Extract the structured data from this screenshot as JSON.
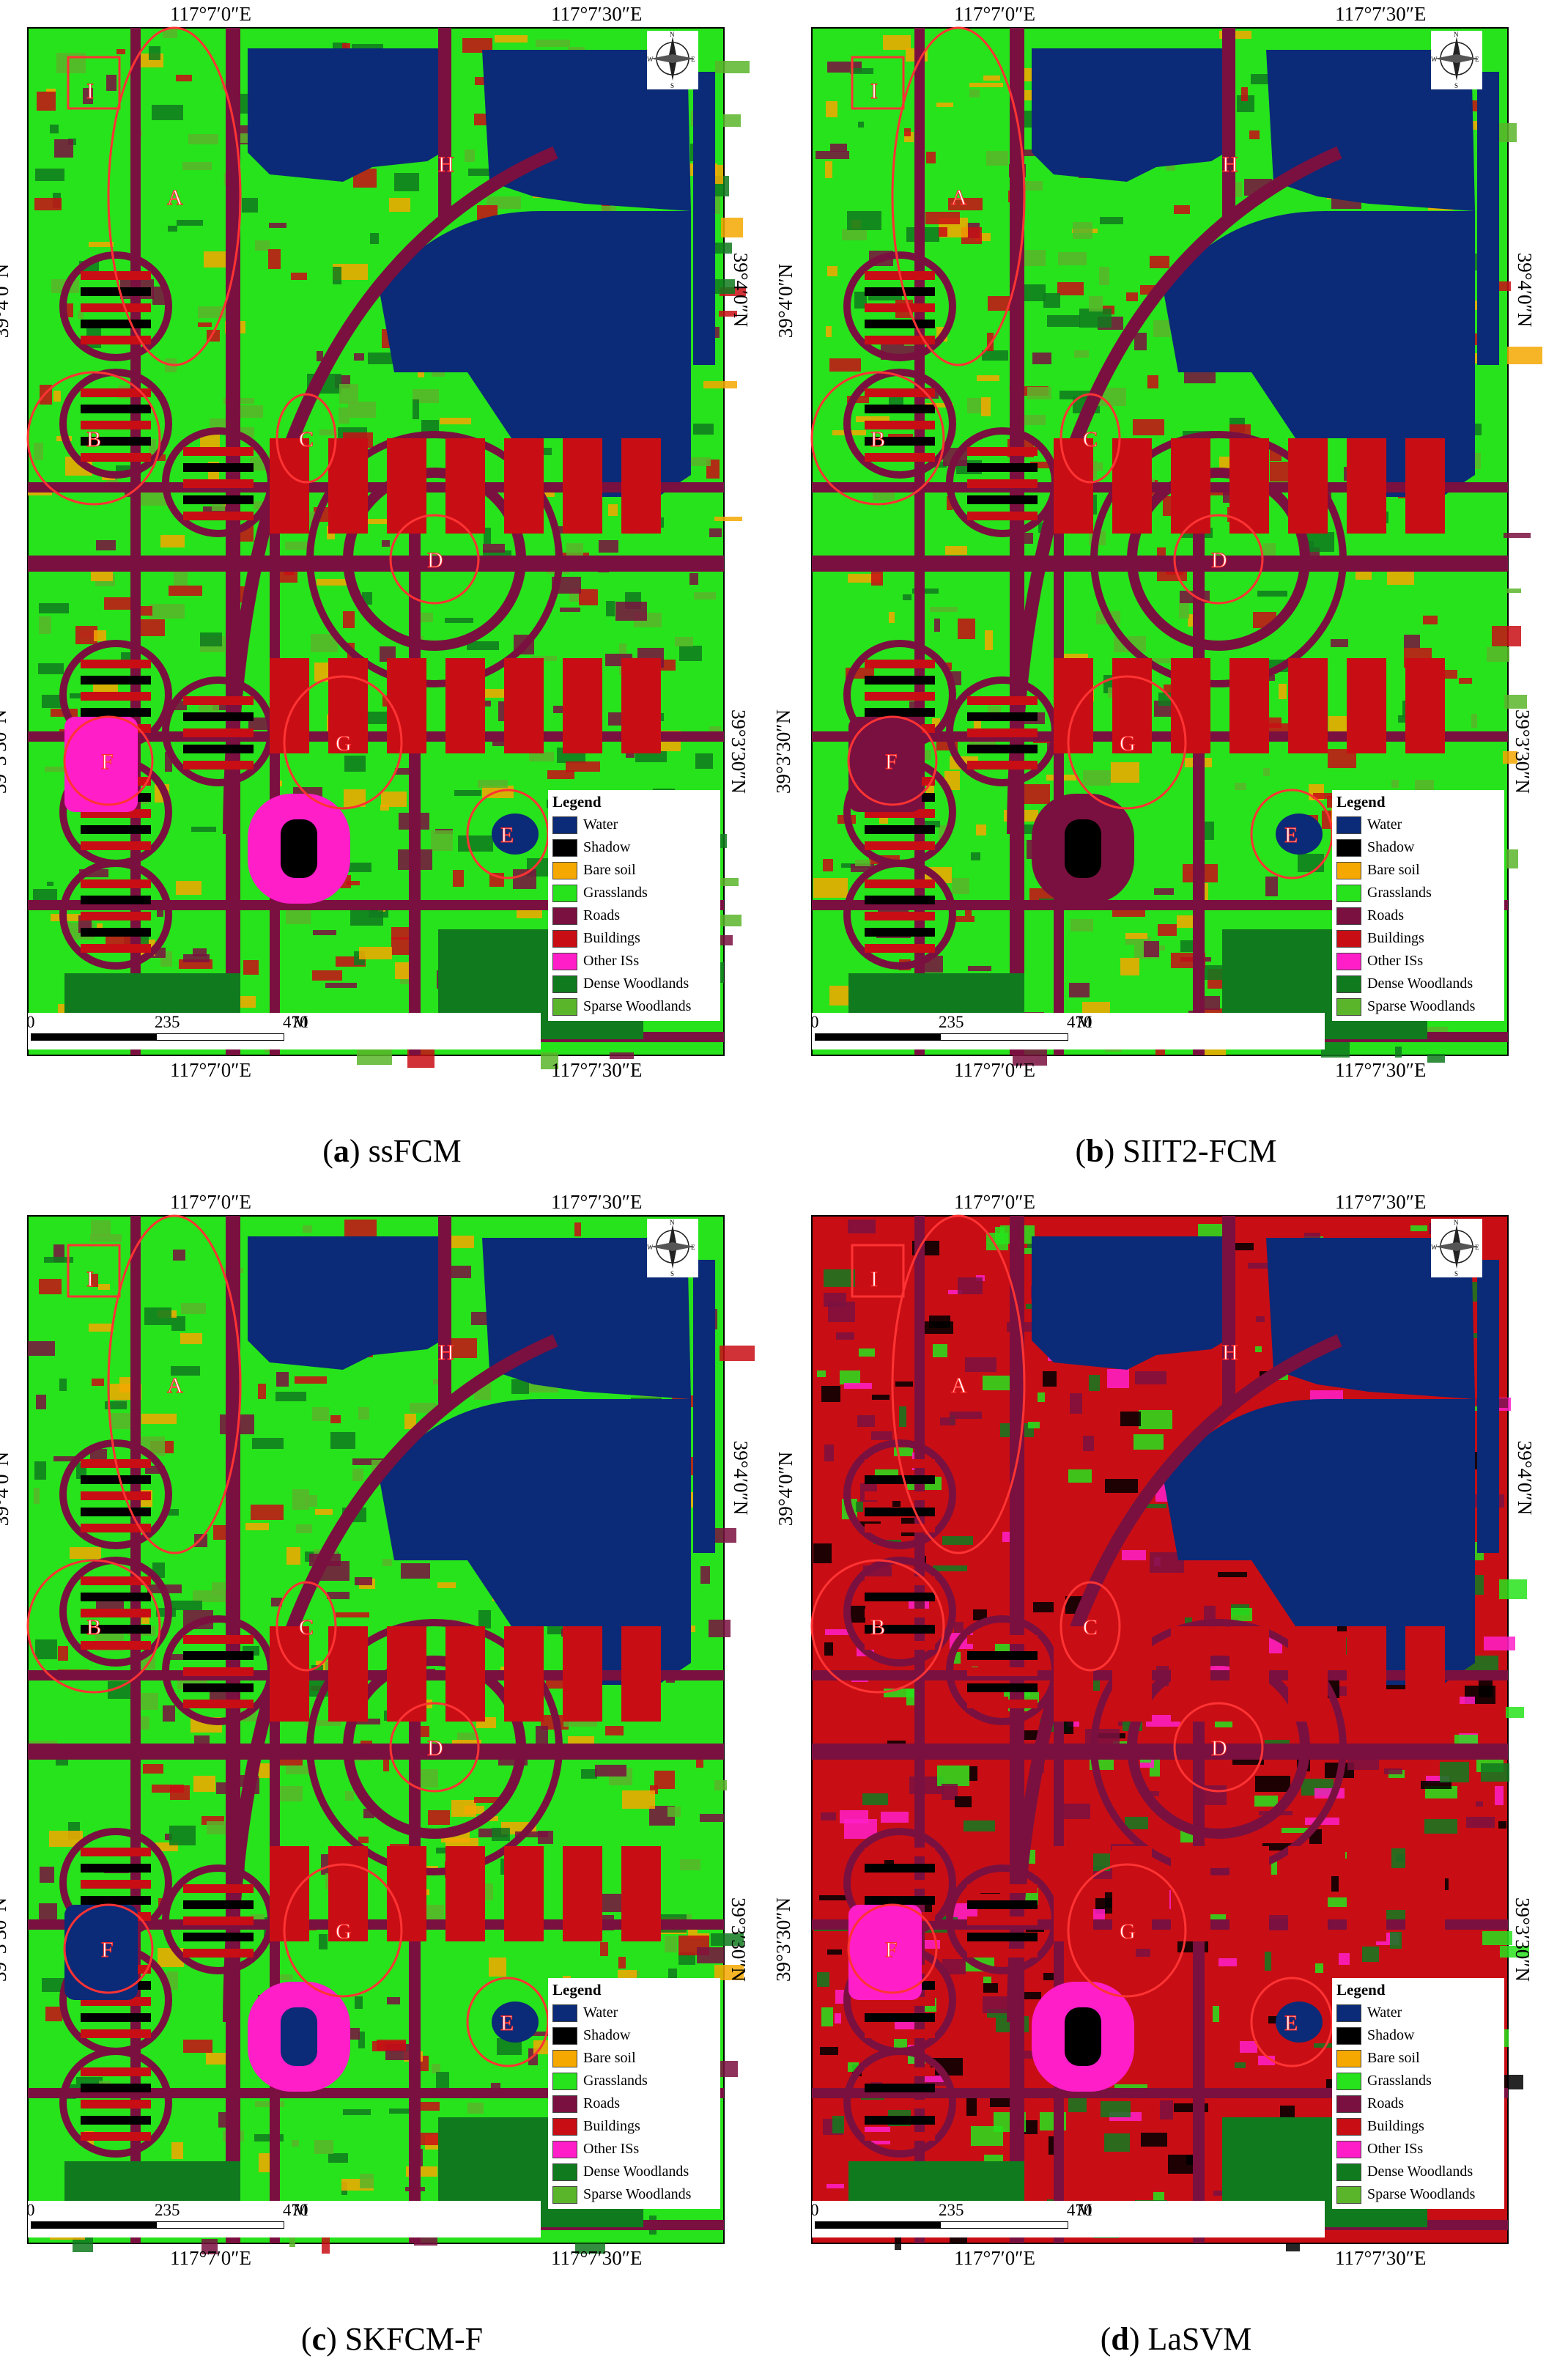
{
  "colors": {
    "water": "#0b2a78",
    "shadow": "#000000",
    "bare_soil": "#f5a800",
    "grasslands": "#27e31b",
    "roads": "#7a1040",
    "buildings": "#c80e14",
    "other_iss": "#ff1ec8",
    "dense_woodlands": "#107a1e",
    "sparse_woodlands": "#5ab52a",
    "circle": "#ff3333"
  },
  "coords": {
    "top_left": "117°7′0″E",
    "top_right": "117°7′30″E",
    "bottom_left": "117°7′0″E",
    "bottom_right": "117°7′30″E",
    "left_upper": "39°4′0″N",
    "left_lower": "39°3′30″N",
    "right_upper": "39°4′0″N",
    "right_lower": "39°3′30″N"
  },
  "legend": {
    "title": "Legend",
    "items": [
      {
        "label": "Water",
        "color": "#0b2a78",
        "icon": "swatch"
      },
      {
        "label": "Shadow",
        "color": "#000000",
        "icon": "swatch"
      },
      {
        "label": "Bare soil",
        "color": "#f5a800",
        "icon": "swatch"
      },
      {
        "label": "Grasslands",
        "color": "#27e31b",
        "icon": "swatch"
      },
      {
        "label": "Roads",
        "color": "#7a1040",
        "icon": "swatch"
      },
      {
        "label": "Buildings",
        "color": "#c80e14",
        "icon": "swatch"
      },
      {
        "label": "Other ISs",
        "color": "#ff1ec8",
        "icon": "swatch"
      },
      {
        "label": "Dense Woodlands",
        "color": "#107a1e",
        "icon": "swatch"
      },
      {
        "label": "Sparse Woodlands",
        "color": "#5ab52a",
        "icon": "swatch"
      }
    ]
  },
  "scale": {
    "ticks": [
      "0",
      "235",
      "470"
    ],
    "unit": "M"
  },
  "compass": {
    "icon": "north-arrow-compass-icon",
    "letters": [
      "N",
      "W",
      "E",
      "S"
    ]
  },
  "zones": [
    "A",
    "B",
    "C",
    "D",
    "E",
    "F",
    "G",
    "H",
    "I"
  ],
  "panels": [
    {
      "letter": "a",
      "method": "ssFCM",
      "dominant": "grasslands"
    },
    {
      "letter": "b",
      "method": "SIIT2-FCM",
      "dominant": "grasslands"
    },
    {
      "letter": "c",
      "method": "SKFCM-F",
      "dominant": "grasslands"
    },
    {
      "letter": "d",
      "method": "LaSVM",
      "dominant": "buildings"
    }
  ]
}
